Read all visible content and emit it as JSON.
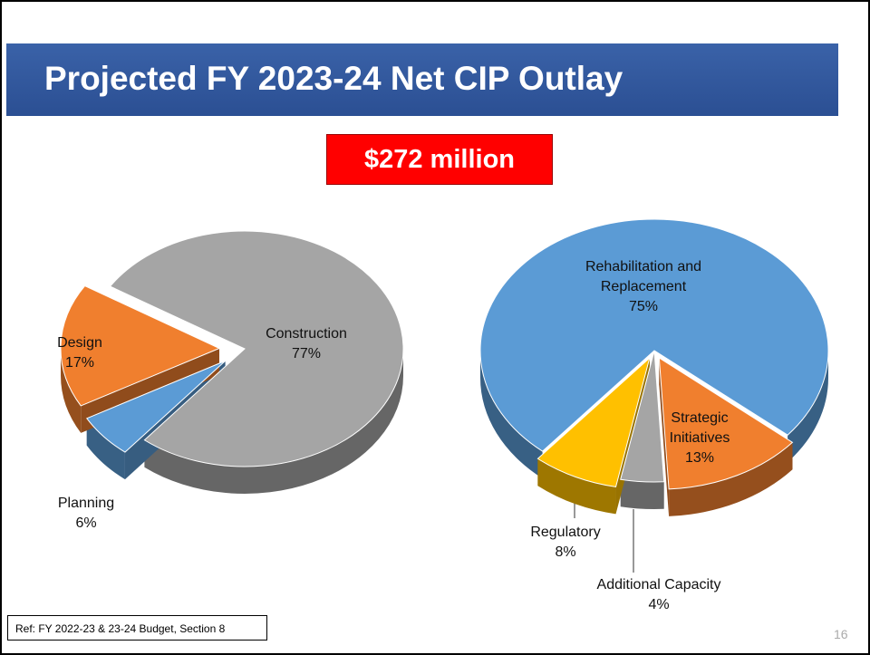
{
  "title": "Projected FY 2023-24 Net CIP Outlay",
  "badge": "$272 million",
  "reference": "Ref:  FY 2022-23 & 23-24 Budget, Section 8",
  "page_number": "16",
  "chart_data": [
    {
      "type": "pie3d",
      "categories": [
        "Construction",
        "Planning",
        "Design"
      ],
      "values": [
        77,
        6,
        17
      ],
      "value_labels": [
        "77%",
        "6%",
        "17%"
      ],
      "colors": [
        "#a5a5a5",
        "#5b9bd5",
        "#f07f2e"
      ],
      "explode": [
        false,
        true,
        true
      ]
    },
    {
      "type": "pie3d",
      "categories": [
        "Rehabilitation and Replacement",
        "Strategic Initiatives",
        "Additional Capacity",
        "Regulatory"
      ],
      "values": [
        75,
        13,
        4,
        8
      ],
      "value_labels": [
        "75%",
        "13%",
        "4%",
        "8%"
      ],
      "colors": [
        "#5b9bd5",
        "#f07f2e",
        "#a5a5a5",
        "#ffc000"
      ],
      "explode": [
        false,
        true,
        false,
        true
      ]
    }
  ]
}
